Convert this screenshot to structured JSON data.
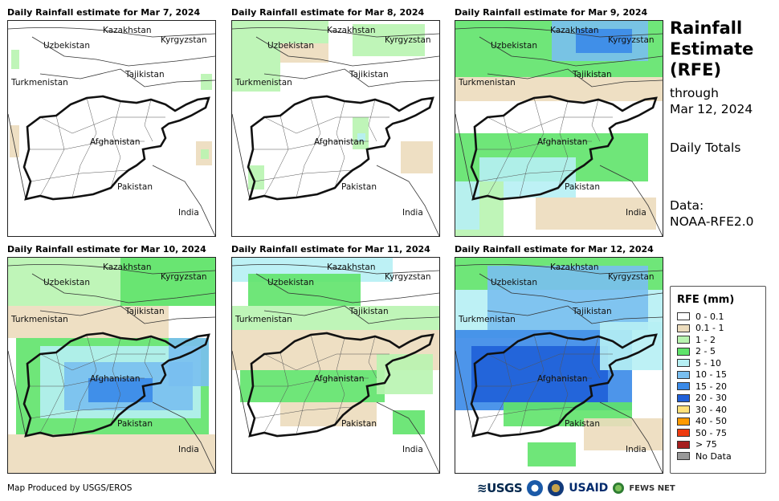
{
  "panels": [
    {
      "title": "Daily Rainfall estimate for Mar 7, 2024",
      "intensity": "dry"
    },
    {
      "title": "Daily Rainfall estimate for Mar 8, 2024",
      "intensity": "light"
    },
    {
      "title": "Daily Rainfall estimate for Mar 9, 2024",
      "intensity": "moderate"
    },
    {
      "title": "Daily Rainfall estimate for Mar 10, 2024",
      "intensity": "moderate"
    },
    {
      "title": "Daily Rainfall estimate for Mar 11, 2024",
      "intensity": "light"
    },
    {
      "title": "Daily Rainfall estimate for Mar 12, 2024",
      "intensity": "heavy"
    }
  ],
  "map_labels": {
    "kazakhstan": "Kazakhstan",
    "kyrgyzstan": "Kyrgyzstan",
    "uzbekistan": "Uzbekistan",
    "tajikistan": "Tajikistan",
    "turkmenistan": "Turkmenistan",
    "afghanistan": "Afghanistan",
    "pakistan": "Pakistan",
    "india": "India"
  },
  "side": {
    "title_line1": "Rainfall",
    "title_line2": "Estimate",
    "title_line3": "(RFE)",
    "through": "through",
    "date": "Mar 12, 2024",
    "totals": "Daily Totals",
    "data_label": "Data:",
    "data_source": "NOAA-RFE2.0"
  },
  "legend": {
    "title": "RFE (mm)",
    "items": [
      {
        "label": "0 - 0.1",
        "color": "#ffffff"
      },
      {
        "label": "0.1 - 1",
        "color": "#ecdcbd"
      },
      {
        "label": "1 - 2",
        "color": "#b8f4b0"
      },
      {
        "label": "2 - 5",
        "color": "#5fe36a"
      },
      {
        "label": "5 - 10",
        "color": "#b6f0f4"
      },
      {
        "label": "10 - 15",
        "color": "#79bff0"
      },
      {
        "label": "15 - 20",
        "color": "#3a8ae8"
      },
      {
        "label": "20 - 30",
        "color": "#1f5fd8"
      },
      {
        "label": "30 - 40",
        "color": "#ffe17a"
      },
      {
        "label": "40 - 50",
        "color": "#ff9a00"
      },
      {
        "label": "50 - 75",
        "color": "#ee3b10"
      },
      {
        "label": "> 75",
        "color": "#a51e1e"
      },
      {
        "label": "No Data",
        "color": "#999999"
      }
    ]
  },
  "footer": {
    "credit": "Map Produced by USGS/EROS",
    "logo_usgs": "USGS",
    "logo_usaid": "USAID",
    "logo_fews": "FEWS NET"
  }
}
